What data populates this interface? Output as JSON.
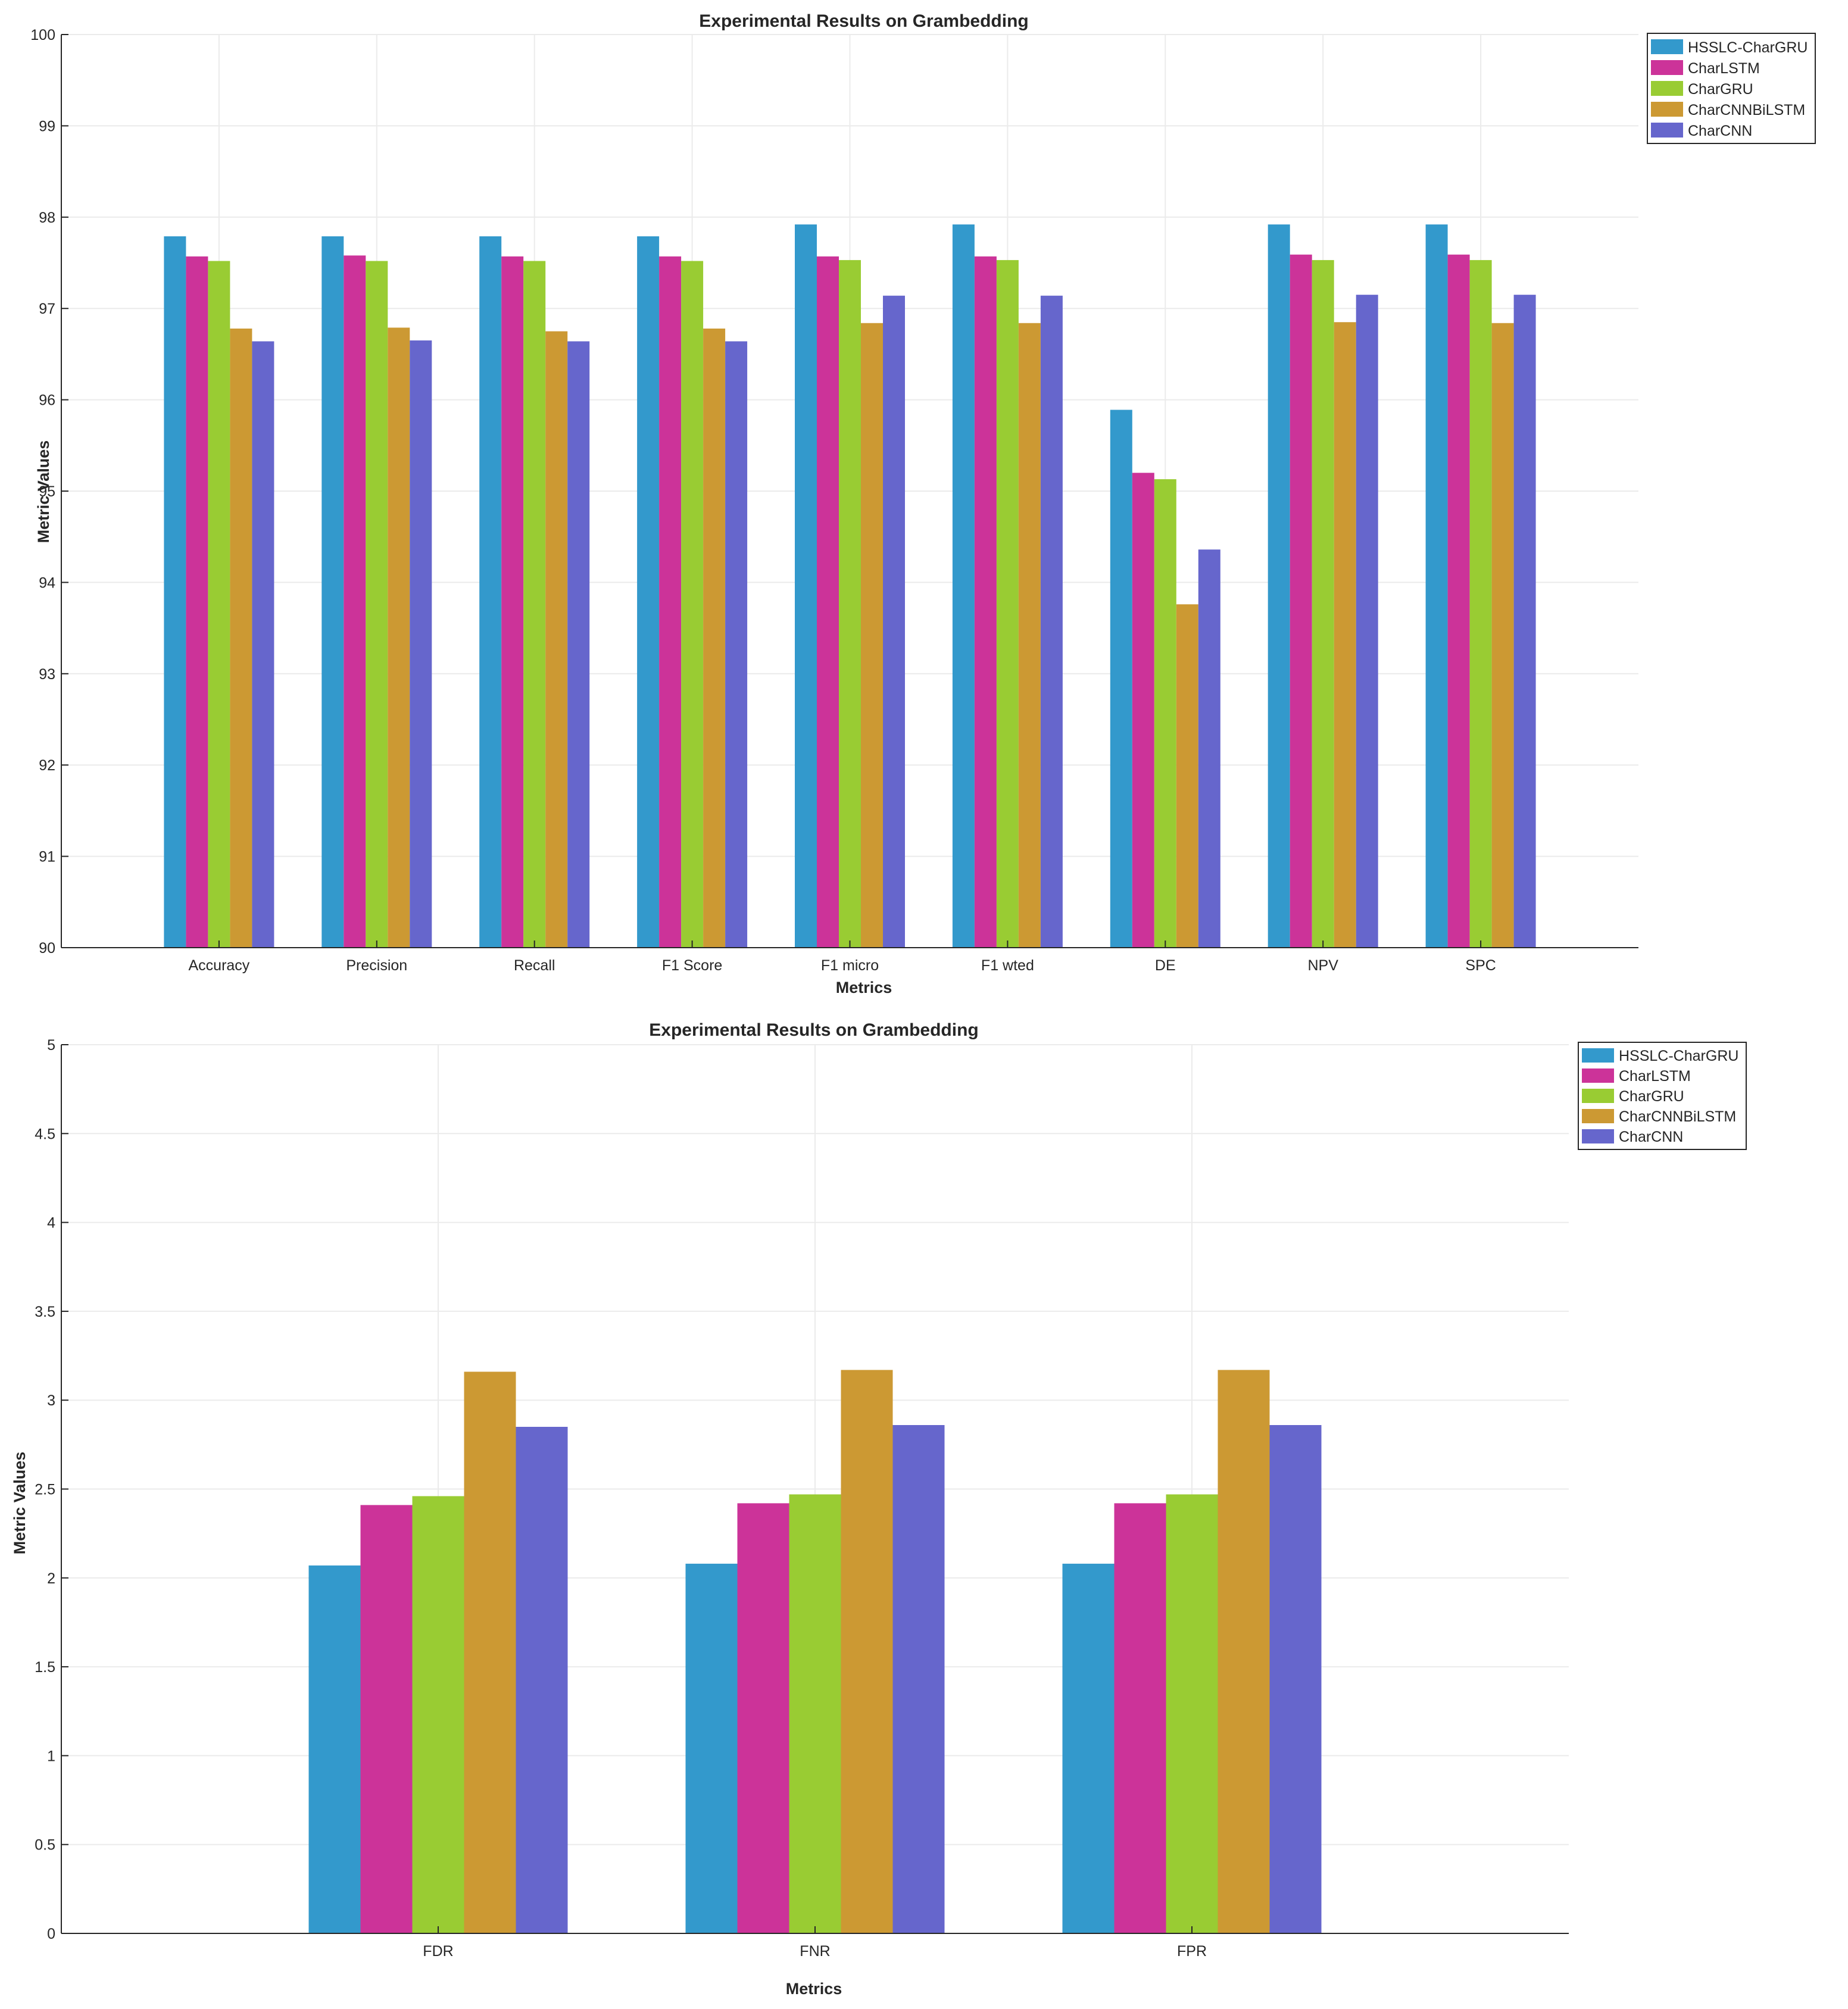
{
  "chart_data": [
    {
      "type": "bar",
      "title": "Experimental Results on Grambedding",
      "xlabel": "Metrics",
      "ylabel": "Metric Values",
      "ylim": [
        90,
        100
      ],
      "yticks": [
        90,
        91,
        92,
        93,
        94,
        95,
        96,
        97,
        98,
        99,
        100
      ],
      "ytick_labels": [
        "90",
        "91",
        "92",
        "93",
        "94",
        "95",
        "96",
        "97",
        "98",
        "99",
        "100"
      ],
      "grid": true,
      "legend_position": "top-right",
      "categories": [
        "Accuracy",
        "Precision",
        "Recall",
        "F1 Score",
        "F1 micro",
        "F1 wted",
        "DE",
        "NPV",
        "SPC"
      ],
      "series": [
        {
          "name": "HSSLC-CharGRU",
          "color": "#3399cc",
          "values": [
            97.79,
            97.79,
            97.79,
            97.79,
            97.92,
            97.92,
            95.89,
            97.92,
            97.92
          ]
        },
        {
          "name": "CharLSTM",
          "color": "#cc3399",
          "values": [
            97.57,
            97.58,
            97.57,
            97.57,
            97.57,
            97.57,
            95.2,
            97.59,
            97.59
          ]
        },
        {
          "name": "CharGRU",
          "color": "#99cc33",
          "values": [
            97.52,
            97.52,
            97.52,
            97.52,
            97.53,
            97.53,
            95.13,
            97.53,
            97.53
          ]
        },
        {
          "name": "CharCNNBiLSTM",
          "color": "#cc9933",
          "values": [
            96.78,
            96.79,
            96.75,
            96.78,
            96.84,
            96.84,
            93.76,
            96.85,
            96.84
          ]
        },
        {
          "name": "CharCNN",
          "color": "#6666cc",
          "values": [
            96.64,
            96.65,
            96.64,
            96.64,
            97.14,
            97.14,
            94.36,
            97.15,
            97.15
          ]
        }
      ]
    },
    {
      "type": "bar",
      "title": "Experimental Results on Grambedding",
      "xlabel": "Metrics",
      "ylabel": "Metric Values",
      "ylim": [
        0,
        5
      ],
      "yticks": [
        0,
        0.5,
        1,
        1.5,
        2,
        2.5,
        3,
        3.5,
        4,
        4.5,
        5
      ],
      "ytick_labels": [
        "0",
        "0.5",
        "1",
        "1.5",
        "2",
        "2.5",
        "3",
        "3.5",
        "4",
        "4.5",
        "5"
      ],
      "grid": true,
      "legend_position": "top-right",
      "categories": [
        "FDR",
        "FNR",
        "FPR"
      ],
      "series": [
        {
          "name": "HSSLC-CharGRU",
          "color": "#3399cc",
          "values": [
            2.07,
            2.08,
            2.08
          ]
        },
        {
          "name": "CharLSTM",
          "color": "#cc3399",
          "values": [
            2.41,
            2.42,
            2.42
          ]
        },
        {
          "name": "CharGRU",
          "color": "#99cc33",
          "values": [
            2.46,
            2.47,
            2.47
          ]
        },
        {
          "name": "CharCNNBiLSTM",
          "color": "#cc9933",
          "values": [
            3.16,
            3.17,
            3.17
          ]
        },
        {
          "name": "CharCNN",
          "color": "#6666cc",
          "values": [
            2.85,
            2.86,
            2.86
          ]
        }
      ]
    }
  ]
}
